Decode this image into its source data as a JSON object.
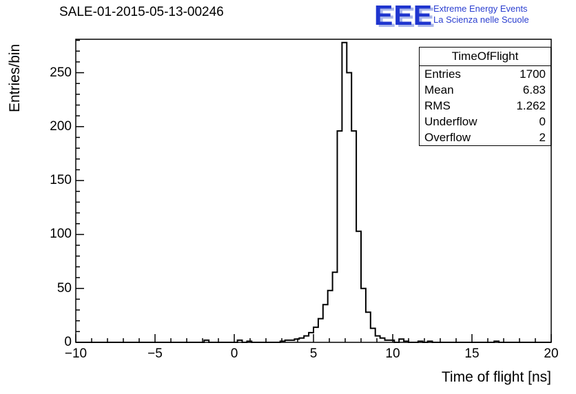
{
  "header": {
    "title": "SALE-01-2015-05-13-00246",
    "logo": {
      "text": "EEE",
      "line1": "Extreme Energy Events",
      "line2": "La Scienza nelle Scuole"
    }
  },
  "stats": {
    "title": "TimeOfFlight",
    "rows": [
      {
        "label": "Entries",
        "value": "1700"
      },
      {
        "label": "Mean",
        "value": "6.83"
      },
      {
        "label": "RMS",
        "value": "1.262"
      },
      {
        "label": "Underflow",
        "value": "0"
      },
      {
        "label": "Overflow",
        "value": "2"
      }
    ]
  },
  "chart_data": {
    "type": "bar",
    "style": "root-histogram-step-outline",
    "title": "SALE-01-2015-05-13-00246",
    "xlabel": "Time of flight [ns]",
    "ylabel": "Entries/bin",
    "xlim": [
      -10,
      20
    ],
    "ylim": [
      0,
      281
    ],
    "grid": false,
    "line_color": "#000000",
    "bin_width": 0.3,
    "bins_note": "pairs of [bin_left_edge_ns, entries]; all unlisted bins are 0",
    "bins": [
      [
        -1.9,
        2
      ],
      [
        0.2,
        2
      ],
      [
        0.8,
        1
      ],
      [
        2.9,
        1
      ],
      [
        3.2,
        2
      ],
      [
        3.5,
        2
      ],
      [
        3.8,
        3
      ],
      [
        4.1,
        4
      ],
      [
        4.4,
        6
      ],
      [
        4.7,
        9
      ],
      [
        5.0,
        14
      ],
      [
        5.3,
        22
      ],
      [
        5.6,
        35
      ],
      [
        5.9,
        48
      ],
      [
        6.2,
        65
      ],
      [
        6.5,
        196
      ],
      [
        6.8,
        278
      ],
      [
        7.1,
        250
      ],
      [
        7.4,
        196
      ],
      [
        7.7,
        103
      ],
      [
        8.0,
        50
      ],
      [
        8.3,
        28
      ],
      [
        8.6,
        13
      ],
      [
        8.9,
        6
      ],
      [
        9.2,
        4
      ],
      [
        9.5,
        2
      ],
      [
        9.8,
        2
      ],
      [
        10.4,
        3
      ],
      [
        10.7,
        1
      ],
      [
        11.6,
        1
      ],
      [
        12.2,
        1
      ],
      [
        16.4,
        1
      ]
    ],
    "xticks": [
      {
        "value": -10,
        "label": "−10"
      },
      {
        "value": -5,
        "label": "−5"
      },
      {
        "value": 0,
        "label": "0"
      },
      {
        "value": 5,
        "label": "5"
      },
      {
        "value": 10,
        "label": "10"
      },
      {
        "value": 15,
        "label": "15"
      },
      {
        "value": 20,
        "label": "20"
      }
    ],
    "yticks": [
      {
        "value": 0,
        "label": "0"
      },
      {
        "value": 50,
        "label": "50"
      },
      {
        "value": 100,
        "label": "100"
      },
      {
        "value": 150,
        "label": "150"
      },
      {
        "value": 200,
        "label": "200"
      },
      {
        "value": 250,
        "label": "250"
      }
    ],
    "x_minor_step": 1,
    "y_minor_step": 10,
    "stats": {
      "entries": 1700,
      "mean": 6.83,
      "rms": 1.262,
      "underflow": 0,
      "overflow": 2
    }
  }
}
